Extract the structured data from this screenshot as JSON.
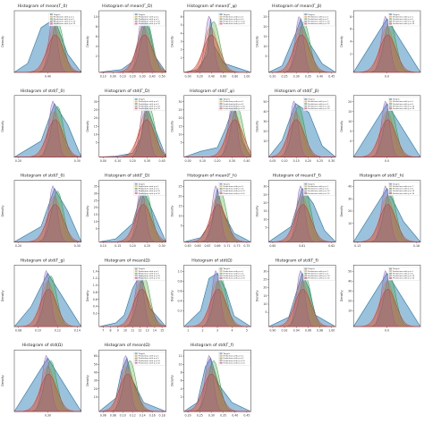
{
  "legend": {
    "entries": [
      {
        "label": "Targets",
        "color": "#1f77b4"
      },
      {
        "label": "Predictions with p = 1",
        "color": "#ff7f0e"
      },
      {
        "label": "Predictions with p = 5",
        "color": "#2ca02c"
      },
      {
        "label": "Predictions with p = 10",
        "color": "#9467bd"
      },
      {
        "label": "Predictions with p = 10",
        "color": "#d62728"
      }
    ]
  },
  "ylabel": "Density",
  "chart_data": [
    {
      "type": "area",
      "title": "Histogram of mean(Γ_0)",
      "xticks": [
        "0.40"
      ],
      "yticks": [],
      "series": [
        {
          "name": "Targets",
          "x": [
            0.2,
            0.25,
            0.3,
            0.35,
            0.4,
            0.45
          ],
          "y": [
            0,
            2,
            10,
            12,
            4,
            0
          ]
        }
      ]
    },
    {
      "type": "area",
      "title": "Histogram of mean(Γ_D)",
      "xticks": [
        "0.10",
        "0.00",
        "0.10",
        "0.20",
        "0.30",
        "0.40",
        "0.50"
      ],
      "yticks": [
        "2",
        "4",
        "6",
        "8",
        "10"
      ],
      "series": [
        {
          "name": "Targets",
          "x": [
            -0.1,
            0.1,
            0.2,
            0.25,
            0.3,
            0.35,
            0.4,
            0.5
          ],
          "y": [
            0,
            0.5,
            2,
            6,
            10,
            8,
            3,
            0
          ]
        }
      ]
    },
    {
      "type": "area",
      "title": "Histogram of mean(Γ_ψ)",
      "xticks": [
        "0.00",
        "0.20",
        "0.40",
        "0.60",
        "0.80",
        "1.00"
      ],
      "yticks": [
        "1",
        "2",
        "3",
        "4",
        "5",
        "6"
      ],
      "series": [
        {
          "name": "Targets",
          "x": [
            0,
            0.2,
            0.35,
            0.4,
            0.45,
            0.6,
            0.8,
            1.0
          ],
          "y": [
            0,
            0.3,
            2,
            6,
            3,
            1,
            0.5,
            0
          ]
        }
      ]
    },
    {
      "type": "area",
      "title": "Histogram of mean(Γ_β)",
      "xticks": [
        "0.20",
        "0.25",
        "0.30",
        "0.35",
        "0.40",
        "0.45"
      ],
      "yticks": [
        "5",
        "10",
        "15",
        "20",
        "25"
      ],
      "series": [
        {
          "name": "Targets",
          "x": [
            0.2,
            0.25,
            0.3,
            0.32,
            0.35,
            0.4,
            0.45
          ],
          "y": [
            0,
            3,
            18,
            25,
            14,
            4,
            0
          ]
        }
      ]
    },
    {
      "type": "area",
      "title": "",
      "xticks": [
        "0.0"
      ],
      "yticks": [
        "2",
        "4",
        "6",
        "8"
      ],
      "series": [
        {
          "name": "Targets",
          "x": [
            -0.05,
            0,
            0.05
          ],
          "y": [
            0,
            8,
            0
          ]
        }
      ]
    },
    {
      "type": "area",
      "title": "Histogram of std(Γ_0)",
      "xticks": [
        "0.20",
        "0.30"
      ],
      "yticks": [],
      "series": [
        {
          "name": "Targets",
          "x": [
            0.1,
            0.2,
            0.25,
            0.3,
            0.35
          ],
          "y": [
            0,
            3,
            10,
            6,
            0
          ]
        }
      ]
    },
    {
      "type": "area",
      "title": "Histogram of std(Γ_D)",
      "xticks": [
        "0.00",
        "0.10",
        "0.20",
        "0.30",
        "0.40"
      ],
      "yticks": [
        "5",
        "10",
        "15",
        "20",
        "25",
        "30"
      ],
      "series": [
        {
          "name": "Targets",
          "x": [
            0,
            0.1,
            0.2,
            0.25,
            0.28,
            0.32,
            0.4
          ],
          "y": [
            0,
            0.5,
            2,
            10,
            28,
            18,
            0
          ]
        }
      ]
    },
    {
      "type": "area",
      "title": "Histogram of std(Γ_ψ)",
      "xticks": [
        "0.00",
        "0.10",
        "0.20",
        "0.30",
        "0.40"
      ],
      "yticks": [
        "5",
        "10",
        "15",
        "20",
        "25",
        "30"
      ],
      "series": [
        {
          "name": "Targets",
          "x": [
            0,
            0.1,
            0.2,
            0.25,
            0.3,
            0.35,
            0.4
          ],
          "y": [
            0,
            3,
            5,
            15,
            28,
            8,
            0
          ]
        }
      ]
    },
    {
      "type": "area",
      "title": "Histogram of std(Γ_β)",
      "xticks": [
        "0.05",
        "0.10",
        "0.15",
        "0.20",
        "0.25",
        "0.30"
      ],
      "yticks": [
        "10",
        "20",
        "30",
        "40",
        "50"
      ],
      "series": [
        {
          "name": "Targets",
          "x": [
            0.05,
            0.1,
            0.15,
            0.2,
            0.25,
            0.3
          ],
          "y": [
            0,
            15,
            48,
            40,
            10,
            0
          ]
        }
      ]
    },
    {
      "type": "area",
      "title": "",
      "xticks": [
        "0.0"
      ],
      "yticks": [
        "0",
        "5",
        "10",
        "15",
        "20"
      ],
      "series": [
        {
          "name": "Targets",
          "x": [
            -0.05,
            0,
            0.05
          ],
          "y": [
            0,
            18,
            0
          ]
        }
      ]
    },
    {
      "type": "area",
      "title": "Histogram of std(Γ_0)",
      "xticks": [
        "0.20",
        "0.30"
      ],
      "yticks": [],
      "series": [
        {
          "name": "Targets",
          "x": [
            0.1,
            0.2,
            0.25,
            0.3,
            0.35
          ],
          "y": [
            0,
            4,
            14,
            8,
            0
          ]
        }
      ]
    },
    {
      "type": "area",
      "title": "Histogram of std(Γ_D)",
      "xticks": [
        "0.10",
        "0.15",
        "0.20",
        "0.25",
        "0.30"
      ],
      "yticks": [
        "5",
        "10",
        "15",
        "20",
        "25",
        "30",
        "35"
      ],
      "series": [
        {
          "name": "Targets",
          "x": [
            0.1,
            0.15,
            0.2,
            0.23,
            0.26,
            0.3
          ],
          "y": [
            0,
            2,
            12,
            35,
            20,
            0
          ]
        }
      ]
    },
    {
      "type": "area",
      "title": "Histogram of mean(Γ_h)",
      "xticks": [
        "0.63",
        "0.65",
        "0.67",
        "0.69",
        "0.71",
        "0.73",
        "0.75"
      ],
      "yticks": [
        "5",
        "10",
        "15",
        "20",
        "25"
      ],
      "series": [
        {
          "name": "Targets",
          "x": [
            0.63,
            0.66,
            0.68,
            0.69,
            0.7,
            0.72,
            0.75
          ],
          "y": [
            0,
            2,
            10,
            25,
            14,
            4,
            0
          ]
        }
      ]
    },
    {
      "type": "area",
      "title": "Histogram of mean(Γ_f)",
      "xticks": [
        "0.60",
        "0.61",
        "0.62"
      ],
      "yticks": [
        "5",
        "10",
        "15",
        "20",
        "25",
        "30"
      ],
      "series": [
        {
          "name": "Targets",
          "x": [
            0.595,
            0.605,
            0.61,
            0.615,
            0.62,
            0.625
          ],
          "y": [
            0,
            8,
            28,
            20,
            6,
            0
          ]
        }
      ]
    },
    {
      "type": "area",
      "title": "Histogram of std(Γ_h)",
      "xticks": [
        "0.13",
        "0.16"
      ],
      "yticks": [
        "10",
        "20",
        "30",
        "40"
      ],
      "series": [
        {
          "name": "Targets",
          "x": [
            0.12,
            0.13,
            0.14,
            0.15,
            0.16
          ],
          "y": [
            0,
            20,
            40,
            15,
            0
          ]
        }
      ]
    },
    {
      "type": "area",
      "title": "Histogram of std(Γ_g)",
      "xticks": [
        "0.08",
        "0.10",
        "0.12",
        "0.14"
      ],
      "yticks": [],
      "series": [
        {
          "name": "Targets",
          "x": [
            0.06,
            0.08,
            0.1,
            0.12,
            0.14
          ],
          "y": [
            0,
            3,
            8,
            4,
            0
          ]
        }
      ]
    },
    {
      "type": "area",
      "title": "Histogram of mean(Ω)",
      "xticks": [
        "7",
        "8",
        "9",
        "10",
        "11",
        "12",
        "13",
        "14",
        "15"
      ],
      "yticks": [
        "0.2",
        "0.4",
        "0.6",
        "0.8",
        "1.0",
        "1.2",
        "1.4"
      ],
      "series": [
        {
          "name": "Targets",
          "x": [
            7,
            9,
            10,
            11,
            12,
            13,
            15
          ],
          "y": [
            0,
            0.1,
            0.3,
            1.0,
            1.4,
            0.5,
            0
          ]
        }
      ]
    },
    {
      "type": "area",
      "title": "Histogram of std(Ω)",
      "xticks": [
        "1",
        "2",
        "3",
        "4",
        "5"
      ],
      "yticks": [
        "0.2",
        "0.4",
        "0.6",
        "0.8",
        "1.0"
      ],
      "series": [
        {
          "name": "Targets",
          "x": [
            1,
            2,
            2.5,
            3,
            3.5,
            4,
            5
          ],
          "y": [
            0,
            0.3,
            0.9,
            1.0,
            0.7,
            0.2,
            0
          ]
        }
      ]
    },
    {
      "type": "area",
      "title": "Histogram of std(Γ_f)",
      "xticks": [
        "0.90",
        "0.92",
        "0.94",
        "0.96",
        "0.98",
        "1.00"
      ],
      "yticks": [
        "5",
        "10",
        "15",
        "20",
        "25",
        "30"
      ],
      "series": [
        {
          "name": "Targets",
          "x": [
            0.9,
            0.93,
            0.95,
            0.96,
            0.97,
            1.0
          ],
          "y": [
            0,
            5,
            28,
            20,
            6,
            0
          ]
        }
      ]
    },
    {
      "type": "area",
      "title": "",
      "xticks": [
        "0.0"
      ],
      "yticks": [
        "10",
        "20",
        "30",
        "40",
        "50"
      ],
      "series": [
        {
          "name": "Targets",
          "x": [
            -0.05,
            0,
            0.05
          ],
          "y": [
            0,
            45,
            0
          ]
        }
      ]
    },
    {
      "type": "area",
      "title": "Histogram of std(Ω)",
      "xticks": [
        "0.30"
      ],
      "yticks": [],
      "series": [
        {
          "name": "Targets",
          "x": [
            0.2,
            0.3,
            0.4
          ],
          "y": [
            0,
            6,
            0
          ]
        }
      ]
    },
    {
      "type": "area",
      "title": "Histogram of mean(Ω)",
      "xticks": [
        "0.06",
        "0.08",
        "0.10",
        "0.12",
        "0.14",
        "0.16",
        "0.18"
      ],
      "yticks": [
        "10",
        "20",
        "30",
        "40",
        "50",
        "60"
      ],
      "series": [
        {
          "name": "Targets",
          "x": [
            0.06,
            0.09,
            0.1,
            0.11,
            0.12,
            0.14,
            0.18
          ],
          "y": [
            0,
            15,
            45,
            60,
            35,
            10,
            0
          ]
        }
      ]
    },
    {
      "type": "area",
      "title": "Histogram of std(Γ_f)",
      "xticks": [
        "0.20",
        "0.25",
        "0.30",
        "0.35",
        "0.40",
        "0.45"
      ],
      "yticks": [
        "2",
        "4",
        "6",
        "8",
        "10",
        "12"
      ],
      "series": [
        {
          "name": "Targets",
          "x": [
            0.2,
            0.25,
            0.28,
            0.3,
            0.33,
            0.38,
            0.45
          ],
          "y": [
            0,
            2,
            10,
            12,
            6,
            2,
            0
          ]
        }
      ]
    }
  ]
}
